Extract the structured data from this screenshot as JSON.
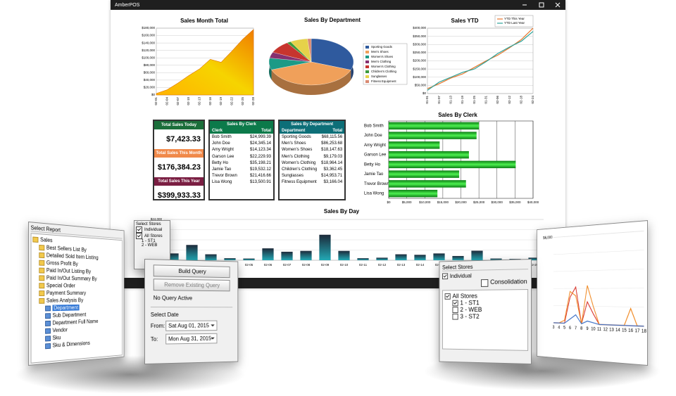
{
  "window": {
    "title": "AmberPOS"
  },
  "sales_month_total": {
    "type": "area",
    "title": "Sales Month Total",
    "categories": [
      "02-01",
      "02-04",
      "02-07",
      "02-10",
      "02-13",
      "02-16",
      "02-19",
      "02-22",
      "02-25",
      "02-28"
    ],
    "values": [
      4000,
      14000,
      32000,
      52000,
      70000,
      96000,
      88000,
      118000,
      150000,
      176384
    ],
    "ylim": [
      0,
      180000
    ],
    "yticks": [
      {
        "value": 0,
        "label": "$0"
      },
      {
        "value": 20000,
        "label": "$20,000"
      },
      {
        "value": 40000,
        "label": "$40,000"
      },
      {
        "value": 60000,
        "label": "$60,000"
      },
      {
        "value": 80000,
        "label": "$80,000"
      },
      {
        "value": 100000,
        "label": "$100,000"
      },
      {
        "value": 120000,
        "label": "$120,000"
      },
      {
        "value": 140000,
        "label": "$140,000"
      },
      {
        "value": 160000,
        "label": "$160,000"
      },
      {
        "value": 180000,
        "label": "$180,000"
      }
    ]
  },
  "sales_by_department": {
    "type": "pie",
    "title": "Sales By Department",
    "header": "Sales By Department",
    "columns": [
      "Department",
      "Total"
    ],
    "categories": [
      "Sporting Goods",
      "Men's Shoes",
      "Women's Shoes",
      "Men's Clothing",
      "Women's Clothing",
      "Children's Clothing",
      "Sunglasses",
      "Fitness Equipment"
    ],
    "values": [
      68115.56,
      86253.68,
      18147.63,
      9179.03,
      18964.14,
      3362.45,
      14953.71,
      3166.04
    ],
    "value_labels": [
      "$68,115.56",
      "$86,253.68",
      "$18,147.63",
      "$9,179.03",
      "$18,964.14",
      "$3,362.45",
      "$14,953.71",
      "$3,166.04"
    ],
    "colors": [
      "#2f5a9e",
      "#f0a05a",
      "#1c9a86",
      "#86306f",
      "#c7352e",
      "#3c9a3c",
      "#e6d24a",
      "#d98a72"
    ]
  },
  "sales_ytd": {
    "type": "line",
    "title": "Sales YTD",
    "categories": [
      "01-01",
      "01-07",
      "01-13",
      "01-19",
      "01-25",
      "01-31",
      "02-06",
      "02-12",
      "02-18",
      "02-24"
    ],
    "series": [
      {
        "name": "YTD This Year",
        "color": "#e8762b",
        "values": [
          30000,
          60000,
          95000,
          120000,
          160000,
          200000,
          235000,
          280000,
          330000,
          399933
        ]
      },
      {
        "name": "YTD Last Year",
        "color": "#2aa198",
        "values": [
          20000,
          70000,
          100000,
          130000,
          150000,
          195000,
          245000,
          285000,
          320000,
          380000
        ]
      }
    ],
    "ylim": [
      0,
      400000
    ],
    "yticks": [
      {
        "value": 0,
        "label": "$0"
      },
      {
        "value": 50000,
        "label": "$50,000"
      },
      {
        "value": 100000,
        "label": "$100,000"
      },
      {
        "value": 150000,
        "label": "$150,000"
      },
      {
        "value": 200000,
        "label": "$200,000"
      },
      {
        "value": 250000,
        "label": "$250,000"
      },
      {
        "value": 300000,
        "label": "$300,000"
      },
      {
        "value": 350000,
        "label": "$350,000"
      },
      {
        "value": 400000,
        "label": "$400,000"
      }
    ]
  },
  "totals": [
    {
      "label": "Total Sales Today",
      "value": "$7,423.33"
    },
    {
      "label": "Total Sales This Month",
      "value": "$176,384.23"
    },
    {
      "label": "Total Sales This Year",
      "value": "$399,933.33"
    }
  ],
  "sales_by_clerk": {
    "type": "bar",
    "title": "Sales By Clerk",
    "header": "Sales By Clerk",
    "columns": [
      "Clerk",
      "Total"
    ],
    "categories": [
      "Bob Smith",
      "John Doe",
      "Amy Wright",
      "Garson Lee",
      "Betty Ho",
      "Jamie Tao",
      "Trevor Brown",
      "Lisa Wong"
    ],
    "values": [
      24999.39,
      24345.14,
      14123.34,
      22229.93,
      35198.21,
      19532.12,
      21416.66,
      13500.91
    ],
    "value_labels": [
      "$24,999.39",
      "$24,345.14",
      "$14,123.34",
      "$22,229.93",
      "$35,198.21",
      "$19,532.12",
      "$21,416.66",
      "$13,500.91"
    ],
    "xlim": [
      0,
      40000
    ],
    "xticks": [
      {
        "value": 0,
        "label": "$0"
      },
      {
        "value": 5000,
        "label": "$5,000"
      },
      {
        "value": 10000,
        "label": "$10,000"
      },
      {
        "value": 15000,
        "label": "$15,000"
      },
      {
        "value": 20000,
        "label": "$20,000"
      },
      {
        "value": 25000,
        "label": "$25,000"
      },
      {
        "value": 30000,
        "label": "$30,000"
      },
      {
        "value": 35000,
        "label": "$35,000"
      },
      {
        "value": 40000,
        "label": "$40,000"
      }
    ]
  },
  "sales_by_day": {
    "type": "bar",
    "title": "Sales By Day",
    "categories": [
      "02-01",
      "02-02",
      "02-03",
      "02-04",
      "02-05",
      "02-06",
      "02-07",
      "02-08",
      "02-09",
      "02-10",
      "02-11",
      "02-12",
      "02-13",
      "02-14",
      "02-15",
      "02-16",
      "02-17",
      "02-18",
      "02-19",
      "02-20"
    ],
    "values": [
      4000,
      9000,
      3500,
      1200,
      1000,
      7000,
      5000,
      5500,
      15000,
      5500,
      1200,
      1500,
      3500,
      3200,
      4000,
      2500,
      5600,
      1000,
      800,
      1500
    ],
    "ylim": [
      0,
      24000
    ],
    "yticks": [
      {
        "value": 24000,
        "label": "$24,000"
      }
    ]
  },
  "report_panel": {
    "title": "Select Report",
    "root": "Sales",
    "reports": [
      "Best Sellers List By",
      "Detailed Sold Item Listing",
      "Gross Profit By",
      "Paid In/Out Listing By",
      "Paid In/Out Summary By",
      "Special Order",
      "Payment Summary",
      "Sales Analysis By"
    ],
    "analysis_children": [
      "Department",
      "Sub Department",
      "Department Full Name",
      "Vendor",
      "Sku",
      "Sku & Dimensions"
    ]
  },
  "back_stores_panel": {
    "title": "Select Stores",
    "individual": "Individual",
    "all": "All Stores",
    "stores": [
      "1 - ST1",
      "2 - WEB"
    ]
  },
  "query_panel": {
    "build": "Build Query",
    "remove": "Remove Existing Query",
    "status": "No Query Active",
    "select_date": "Select Date",
    "from_label": "From:",
    "from": "Sat  Aug 01, 2015",
    "to_label": "To:",
    "to": "Mon Aug 31, 2015"
  },
  "stores_panel": {
    "title": "Select Stores",
    "individual": "Individual",
    "consolidation": "Consolidation",
    "all": "All Stores",
    "stores": [
      "1 - ST1",
      "2 - WEB",
      "3 - ST2"
    ]
  },
  "comparison_chart": {
    "type": "line",
    "categories": [
      "3",
      "4",
      "5",
      "6",
      "7",
      "8",
      "9",
      "10",
      "11",
      "12",
      "13",
      "14",
      "15",
      "16",
      "17",
      "18"
    ],
    "series": [
      {
        "color": "#d9342b",
        "values": [
          0,
          0,
          0,
          1800,
          2500,
          0,
          1500,
          700,
          0,
          0,
          0,
          0,
          0,
          0,
          0,
          0
        ]
      },
      {
        "color": "#f08a24",
        "values": [
          0,
          0,
          200,
          2200,
          1900,
          0,
          2600,
          1200,
          0,
          0,
          0,
          0,
          0,
          1100,
          0,
          0
        ]
      },
      {
        "color": "#3b6fc4",
        "values": [
          0,
          0,
          0,
          300,
          600,
          0,
          200,
          100,
          0,
          0,
          0,
          0,
          0,
          0,
          0,
          0
        ]
      }
    ],
    "ylim": [
      0,
      6000
    ],
    "yticks": [
      {
        "value": 6000,
        "label": "$6,000"
      }
    ]
  }
}
